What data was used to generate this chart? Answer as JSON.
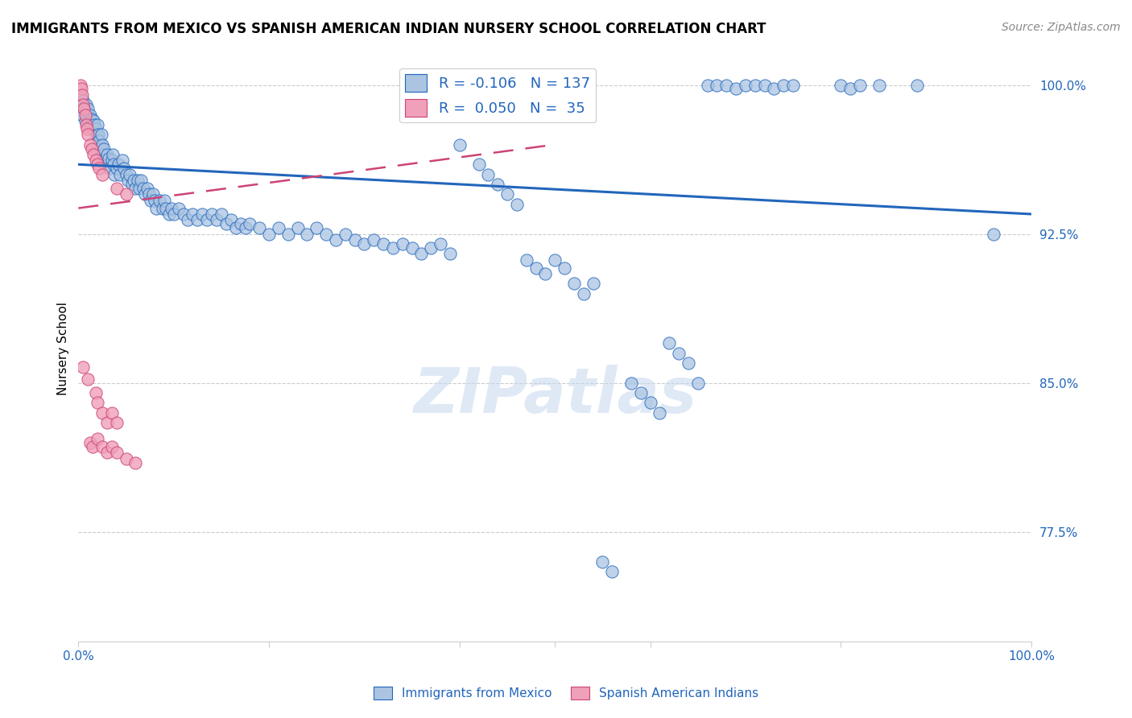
{
  "title": "IMMIGRANTS FROM MEXICO VS SPANISH AMERICAN INDIAN NURSERY SCHOOL CORRELATION CHART",
  "source": "Source: ZipAtlas.com",
  "ylabel": "Nursery School",
  "ytick_labels": [
    "100.0%",
    "92.5%",
    "85.0%",
    "77.5%"
  ],
  "ytick_values": [
    1.0,
    0.925,
    0.85,
    0.775
  ],
  "legend_blue_r": "R = -0.106",
  "legend_blue_n": "N = 137",
  "legend_pink_r": "R =  0.050",
  "legend_pink_n": "N =  35",
  "watermark": "ZIPatlas",
  "blue_color": "#aac4e2",
  "blue_edge_color": "#2266bb",
  "pink_color": "#f0a0b8",
  "pink_edge_color": "#cc4477",
  "blue_scatter": [
    [
      0.002,
      0.995
    ],
    [
      0.003,
      0.99
    ],
    [
      0.004,
      0.985
    ],
    [
      0.005,
      0.992
    ],
    [
      0.006,
      0.988
    ],
    [
      0.007,
      0.982
    ],
    [
      0.008,
      0.99
    ],
    [
      0.009,
      0.985
    ],
    [
      0.01,
      0.988
    ],
    [
      0.011,
      0.982
    ],
    [
      0.012,
      0.985
    ],
    [
      0.013,
      0.98
    ],
    [
      0.014,
      0.983
    ],
    [
      0.015,
      0.978
    ],
    [
      0.016,
      0.982
    ],
    [
      0.017,
      0.98
    ],
    [
      0.018,
      0.978
    ],
    [
      0.019,
      0.975
    ],
    [
      0.02,
      0.98
    ],
    [
      0.021,
      0.975
    ],
    [
      0.022,
      0.972
    ],
    [
      0.023,
      0.968
    ],
    [
      0.024,
      0.975
    ],
    [
      0.025,
      0.97
    ],
    [
      0.026,
      0.965
    ],
    [
      0.027,
      0.968
    ],
    [
      0.028,
      0.962
    ],
    [
      0.03,
      0.965
    ],
    [
      0.031,
      0.96
    ],
    [
      0.032,
      0.963
    ],
    [
      0.033,
      0.958
    ],
    [
      0.035,
      0.962
    ],
    [
      0.036,
      0.965
    ],
    [
      0.037,
      0.96
    ],
    [
      0.038,
      0.955
    ],
    [
      0.04,
      0.958
    ],
    [
      0.042,
      0.96
    ],
    [
      0.044,
      0.955
    ],
    [
      0.046,
      0.962
    ],
    [
      0.048,
      0.958
    ],
    [
      0.05,
      0.955
    ],
    [
      0.052,
      0.952
    ],
    [
      0.054,
      0.955
    ],
    [
      0.056,
      0.95
    ],
    [
      0.058,
      0.952
    ],
    [
      0.06,
      0.948
    ],
    [
      0.062,
      0.952
    ],
    [
      0.064,
      0.948
    ],
    [
      0.066,
      0.952
    ],
    [
      0.068,
      0.948
    ],
    [
      0.07,
      0.945
    ],
    [
      0.072,
      0.948
    ],
    [
      0.074,
      0.945
    ],
    [
      0.076,
      0.942
    ],
    [
      0.078,
      0.945
    ],
    [
      0.08,
      0.942
    ],
    [
      0.082,
      0.938
    ],
    [
      0.085,
      0.942
    ],
    [
      0.088,
      0.938
    ],
    [
      0.09,
      0.942
    ],
    [
      0.092,
      0.938
    ],
    [
      0.095,
      0.935
    ],
    [
      0.098,
      0.938
    ],
    [
      0.1,
      0.935
    ],
    [
      0.105,
      0.938
    ],
    [
      0.11,
      0.935
    ],
    [
      0.115,
      0.932
    ],
    [
      0.12,
      0.935
    ],
    [
      0.125,
      0.932
    ],
    [
      0.13,
      0.935
    ],
    [
      0.135,
      0.932
    ],
    [
      0.14,
      0.935
    ],
    [
      0.145,
      0.932
    ],
    [
      0.15,
      0.935
    ],
    [
      0.155,
      0.93
    ],
    [
      0.16,
      0.932
    ],
    [
      0.165,
      0.928
    ],
    [
      0.17,
      0.93
    ],
    [
      0.175,
      0.928
    ],
    [
      0.18,
      0.93
    ],
    [
      0.19,
      0.928
    ],
    [
      0.2,
      0.925
    ],
    [
      0.21,
      0.928
    ],
    [
      0.22,
      0.925
    ],
    [
      0.23,
      0.928
    ],
    [
      0.24,
      0.925
    ],
    [
      0.25,
      0.928
    ],
    [
      0.26,
      0.925
    ],
    [
      0.27,
      0.922
    ],
    [
      0.28,
      0.925
    ],
    [
      0.29,
      0.922
    ],
    [
      0.3,
      0.92
    ],
    [
      0.31,
      0.922
    ],
    [
      0.32,
      0.92
    ],
    [
      0.33,
      0.918
    ],
    [
      0.34,
      0.92
    ],
    [
      0.35,
      0.918
    ],
    [
      0.36,
      0.915
    ],
    [
      0.37,
      0.918
    ],
    [
      0.38,
      0.92
    ],
    [
      0.39,
      0.915
    ],
    [
      0.4,
      0.97
    ],
    [
      0.42,
      0.96
    ],
    [
      0.43,
      0.955
    ],
    [
      0.44,
      0.95
    ],
    [
      0.45,
      0.945
    ],
    [
      0.46,
      0.94
    ],
    [
      0.47,
      0.912
    ],
    [
      0.48,
      0.908
    ],
    [
      0.49,
      0.905
    ],
    [
      0.5,
      0.912
    ],
    [
      0.51,
      0.908
    ],
    [
      0.52,
      0.9
    ],
    [
      0.53,
      0.895
    ],
    [
      0.54,
      0.9
    ],
    [
      0.55,
      0.76
    ],
    [
      0.56,
      0.755
    ],
    [
      0.58,
      0.85
    ],
    [
      0.59,
      0.845
    ],
    [
      0.6,
      0.84
    ],
    [
      0.61,
      0.835
    ],
    [
      0.62,
      0.87
    ],
    [
      0.63,
      0.865
    ],
    [
      0.64,
      0.86
    ],
    [
      0.65,
      0.85
    ],
    [
      0.66,
      1.0
    ],
    [
      0.67,
      1.0
    ],
    [
      0.68,
      1.0
    ],
    [
      0.69,
      0.998
    ],
    [
      0.7,
      1.0
    ],
    [
      0.71,
      1.0
    ],
    [
      0.72,
      1.0
    ],
    [
      0.73,
      0.998
    ],
    [
      0.74,
      1.0
    ],
    [
      0.75,
      1.0
    ],
    [
      0.8,
      1.0
    ],
    [
      0.81,
      0.998
    ],
    [
      0.82,
      1.0
    ],
    [
      0.84,
      1.0
    ],
    [
      0.88,
      1.0
    ],
    [
      0.96,
      0.925
    ]
  ],
  "pink_scatter": [
    [
      0.002,
      1.0
    ],
    [
      0.003,
      0.998
    ],
    [
      0.004,
      0.995
    ],
    [
      0.005,
      0.99
    ],
    [
      0.006,
      0.988
    ],
    [
      0.007,
      0.985
    ],
    [
      0.008,
      0.98
    ],
    [
      0.009,
      0.978
    ],
    [
      0.01,
      0.975
    ],
    [
      0.012,
      0.97
    ],
    [
      0.014,
      0.968
    ],
    [
      0.016,
      0.965
    ],
    [
      0.018,
      0.962
    ],
    [
      0.02,
      0.96
    ],
    [
      0.022,
      0.958
    ],
    [
      0.025,
      0.955
    ],
    [
      0.04,
      0.948
    ],
    [
      0.05,
      0.945
    ],
    [
      0.005,
      0.858
    ],
    [
      0.01,
      0.852
    ],
    [
      0.018,
      0.845
    ],
    [
      0.02,
      0.84
    ],
    [
      0.025,
      0.835
    ],
    [
      0.03,
      0.83
    ],
    [
      0.035,
      0.835
    ],
    [
      0.04,
      0.83
    ],
    [
      0.012,
      0.82
    ],
    [
      0.015,
      0.818
    ],
    [
      0.02,
      0.822
    ],
    [
      0.025,
      0.818
    ],
    [
      0.03,
      0.815
    ],
    [
      0.035,
      0.818
    ],
    [
      0.04,
      0.815
    ],
    [
      0.05,
      0.812
    ],
    [
      0.06,
      0.81
    ]
  ],
  "blue_line_x": [
    0.0,
    1.0
  ],
  "blue_line_y_start": 0.96,
  "blue_line_y_end": 0.935,
  "pink_line_x_start": 0.0,
  "pink_line_x_end": 0.5,
  "pink_line_y_start": 0.938,
  "pink_line_y_end": 0.97,
  "xmin": 0.0,
  "xmax": 1.0,
  "ymin": 0.72,
  "ymax": 1.015
}
